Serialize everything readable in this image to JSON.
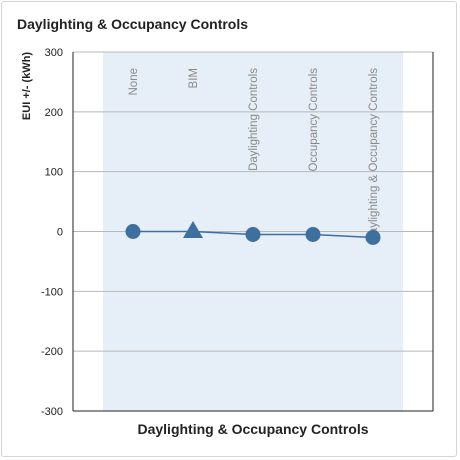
{
  "card": {
    "title": "Daylighting & Occupancy Controls"
  },
  "colors": {
    "band": "#e6eef7",
    "marker": "#3d6f9f",
    "line": "#3d6f9f",
    "gridline": "#b8b8b8",
    "axis": "#222222"
  },
  "chart_data": {
    "type": "line",
    "title": "",
    "xlabel": "Daylighting & Occupancy Controls",
    "ylabel": "EUI +/- (kWh)",
    "ylim": [
      -300,
      300
    ],
    "yticks": [
      300,
      200,
      100,
      0,
      -100,
      -200,
      -300
    ],
    "grid": true,
    "categories": [
      "None",
      "BIM",
      "Daylighting Controls",
      "Occupancy Controls",
      "Daylighting & Occupancy Controls"
    ],
    "series": [
      {
        "values": [
          0,
          0,
          -5,
          -5,
          -10
        ],
        "markers": [
          "circle",
          "triangle",
          "circle",
          "circle",
          "circle"
        ]
      }
    ]
  }
}
